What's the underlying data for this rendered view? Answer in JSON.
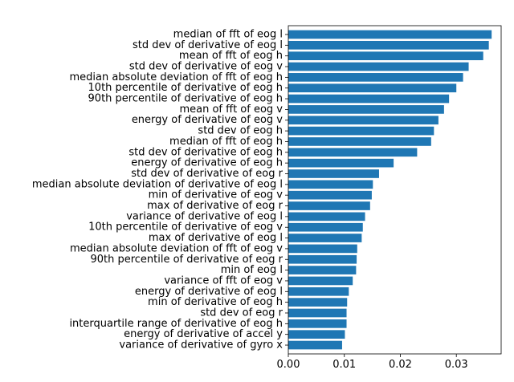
{
  "chart_data": {
    "type": "bar",
    "orientation": "horizontal",
    "title": "",
    "xlabel": "",
    "ylabel": "",
    "xlim": [
      0,
      0.038
    ],
    "xticks": [
      0.0,
      0.01,
      0.02,
      0.03
    ],
    "xtick_labels": [
      "0.00",
      "0.01",
      "0.02",
      "0.03"
    ],
    "grid": false,
    "bar_color": "#1f77b4",
    "categories": [
      "median of fft of eog l",
      "std dev of derivative of eog l",
      "mean of fft of eog h",
      "std dev of derivative of eog v",
      "median absolute deviation of fft of eog h",
      "10th percentile of derivative of eog h",
      "90th percentile of derivative of eog h",
      "mean of fft of eog v",
      "energy of derivative of eog v",
      "std dev of eog h",
      "median of fft of eog h",
      "std dev of derivative of eog h",
      "energy of derivative of eog h",
      "std dev of derivative of eog r",
      "median absolute deviation of derivative of eog l",
      "min of derivative of eog v",
      "max of derivative of eog r",
      "variance of derivative of eog l",
      "10th percentile of derivative of eog v",
      "max of derivative of eog l",
      "median absolute deviation of fft of eog v",
      "90th percentile of derivative of eog r",
      "min of eog l",
      "variance of fft of eog v",
      "energy of derivative of eog l",
      "min of derivative of eog h",
      "std dev of eog r",
      "interquartile range of derivative of eog h",
      "energy of derivative of accel y",
      "variance of derivative of gyro x"
    ],
    "values": [
      0.0363,
      0.0358,
      0.0348,
      0.0322,
      0.0312,
      0.03,
      0.0287,
      0.0278,
      0.0268,
      0.026,
      0.0255,
      0.023,
      0.0188,
      0.0162,
      0.0151,
      0.0149,
      0.0146,
      0.0137,
      0.0133,
      0.0131,
      0.0123,
      0.0122,
      0.0121,
      0.0115,
      0.0108,
      0.0105,
      0.0104,
      0.0104,
      0.0101,
      0.0096
    ]
  }
}
